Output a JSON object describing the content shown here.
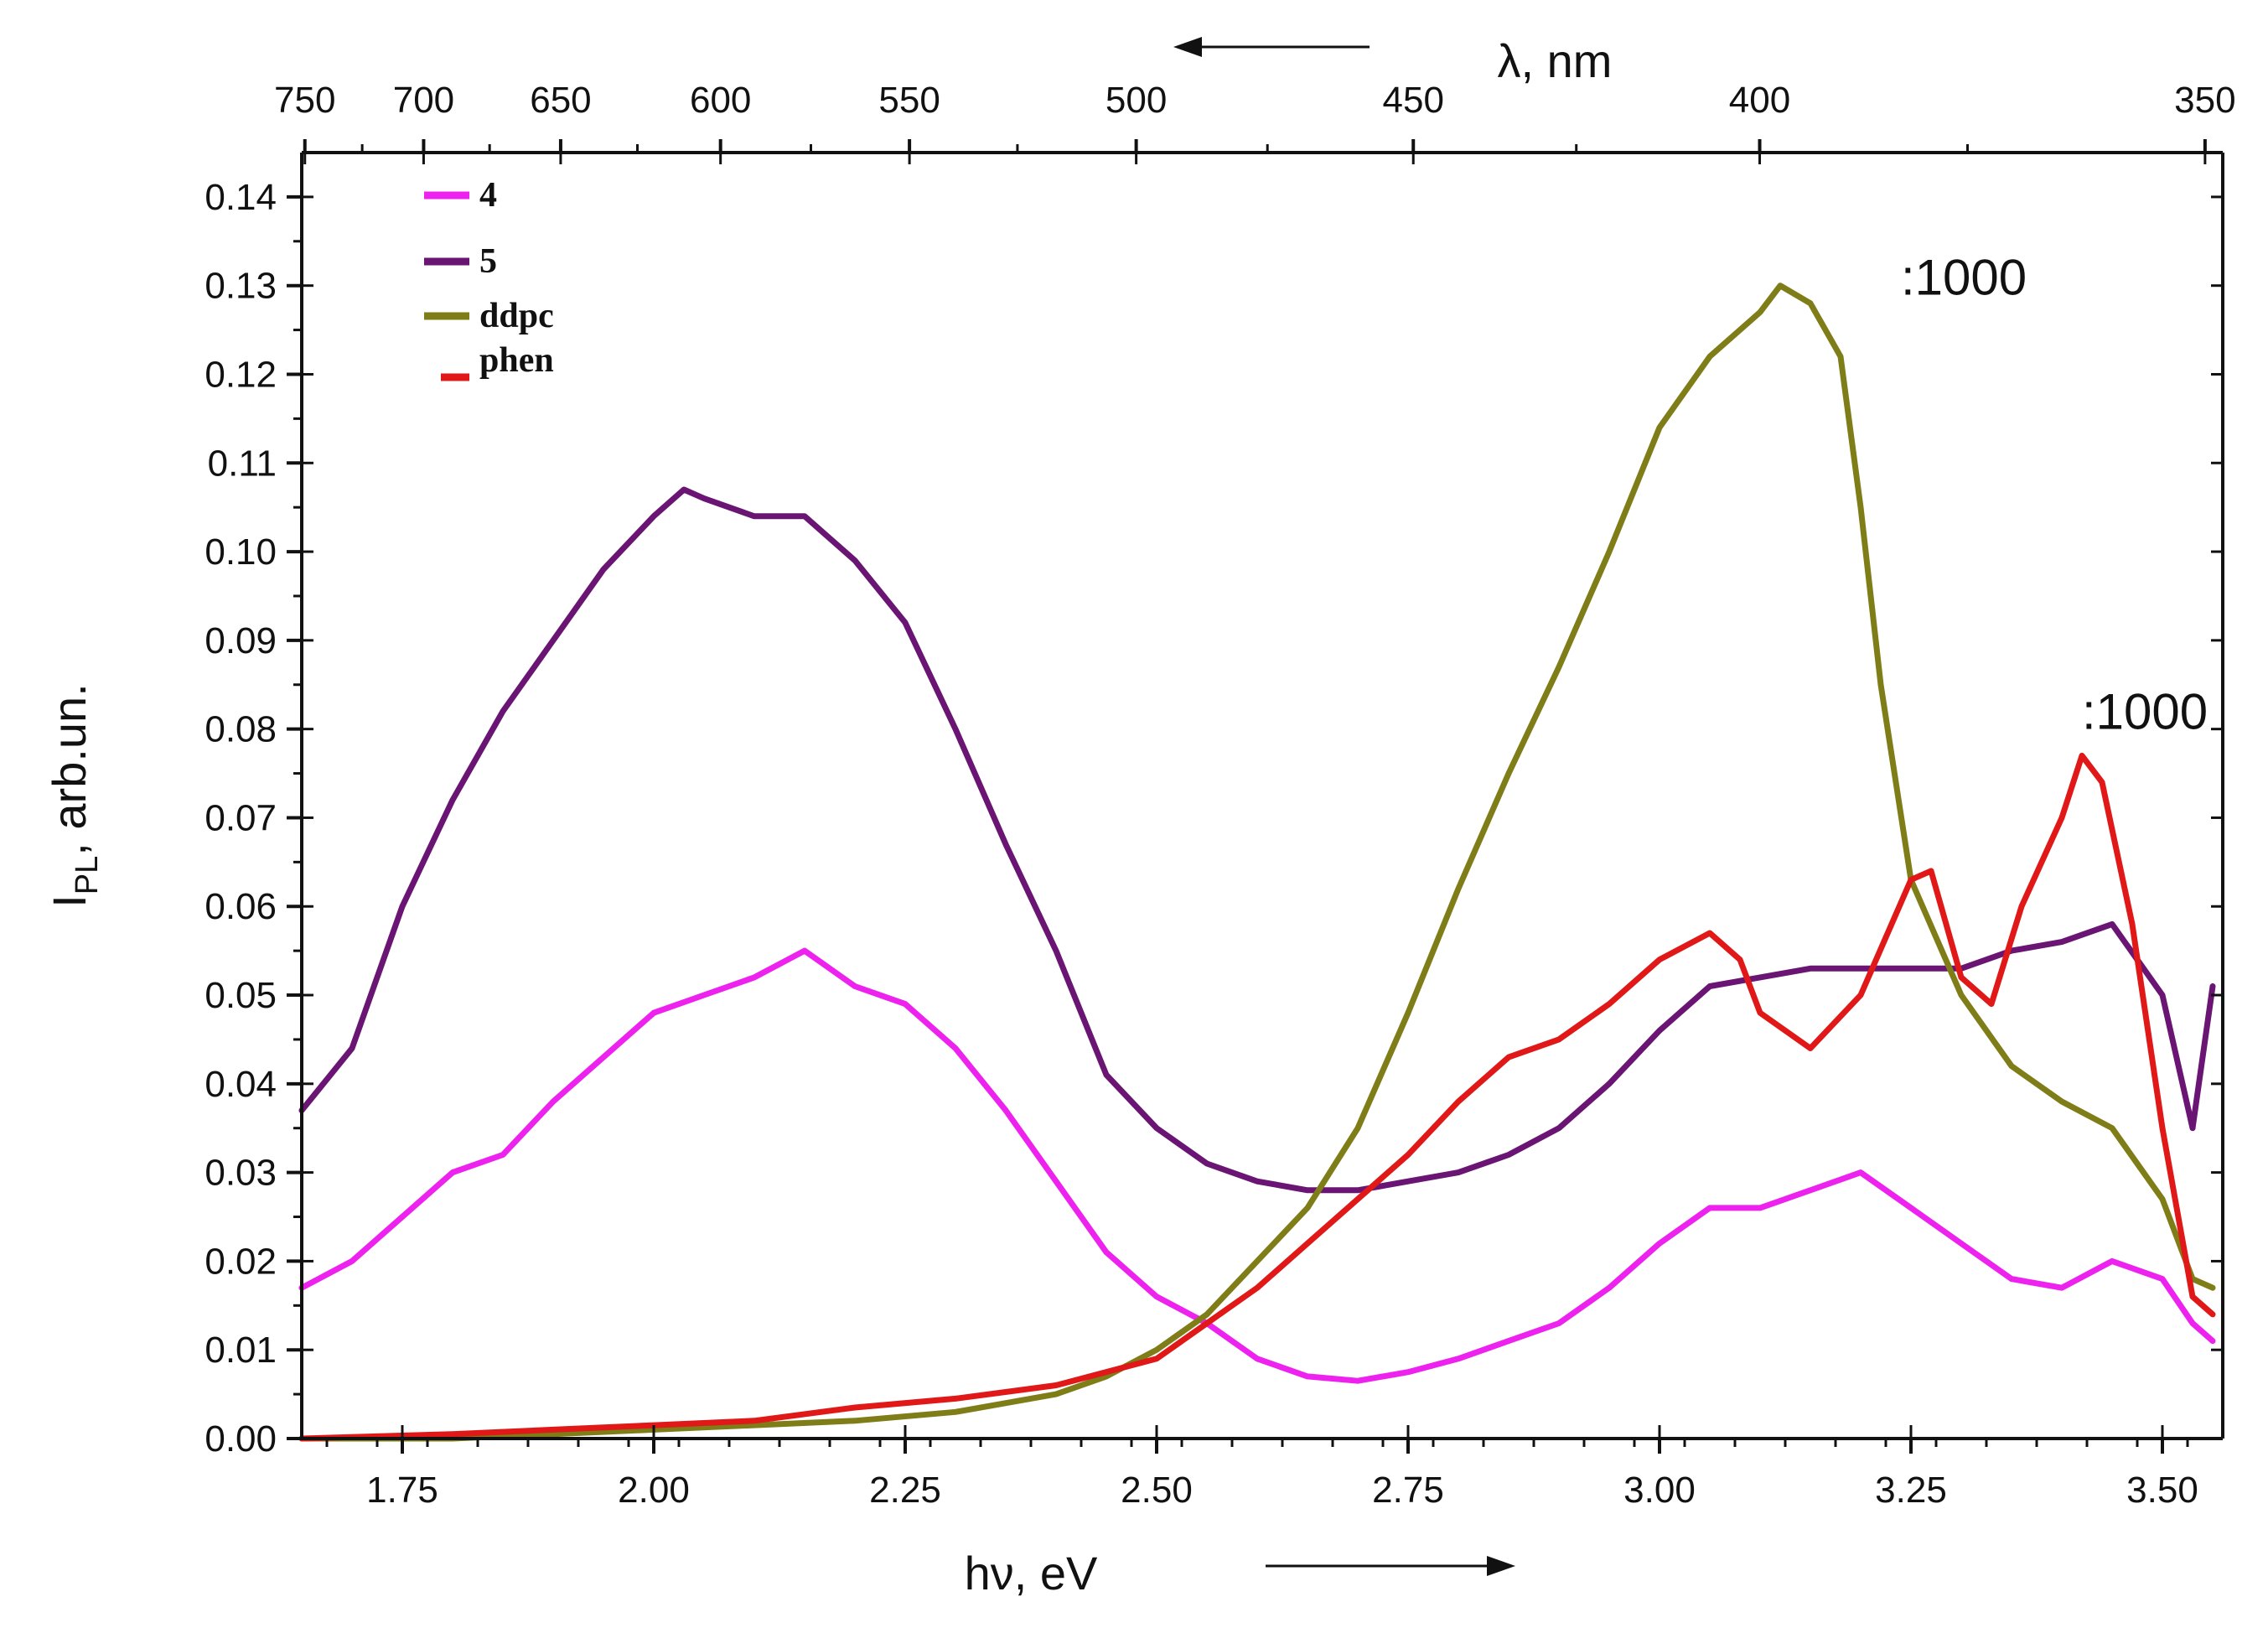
{
  "chart_data": {
    "type": "line",
    "title": "",
    "xlabel": "hν, eV",
    "ylabel": "I",
    "ylabel_sub": "PL",
    "ylabel_suffix": ", arb.un.",
    "xlim": [
      1.65,
      3.56
    ],
    "ylim": [
      0,
      0.145
    ],
    "x_ticks": [
      1.75,
      2.0,
      2.25,
      2.5,
      2.75,
      3.0,
      3.25,
      3.5
    ],
    "x_tick_labels": [
      "1.75",
      "2.00",
      "2.25",
      "2.50",
      "2.75",
      "3.00",
      "3.25",
      "3.50"
    ],
    "y_ticks": [
      0,
      0.01,
      0.02,
      0.03,
      0.04,
      0.05,
      0.06,
      0.07,
      0.08,
      0.09,
      0.1,
      0.11,
      0.12,
      0.13,
      0.14
    ],
    "y_tick_labels": [
      "0.00",
      "0.01",
      "0.02",
      "0.03",
      "0.04",
      "0.05",
      "0.06",
      "0.07",
      "0.08",
      "0.09",
      "0.10",
      "0.11",
      "0.12",
      "0.13",
      "0.14"
    ],
    "top_axis": {
      "label": "λ, nm",
      "ticks_nm": [
        750,
        700,
        650,
        600,
        550,
        500,
        450,
        400,
        350
      ],
      "tick_labels": [
        "750",
        "700",
        "650",
        "600",
        "550",
        "500",
        "450",
        "400",
        "350"
      ]
    },
    "annotations": [
      {
        "text": ":1000",
        "x": 3.24,
        "y": 0.129
      },
      {
        "text": ":1000",
        "x": 3.42,
        "y": 0.08
      }
    ],
    "legend": {
      "position": "top-left",
      "entries": [
        "4",
        "5",
        "ddpc",
        "phen"
      ]
    },
    "series": [
      {
        "name": "4",
        "color": "#ee22ee",
        "x": [
          1.65,
          1.7,
          1.75,
          1.8,
          1.85,
          1.9,
          1.95,
          2.0,
          2.05,
          2.1,
          2.15,
          2.2,
          2.25,
          2.3,
          2.35,
          2.4,
          2.45,
          2.5,
          2.55,
          2.6,
          2.65,
          2.7,
          2.75,
          2.8,
          2.85,
          2.9,
          2.95,
          3.0,
          3.05,
          3.1,
          3.15,
          3.2,
          3.25,
          3.3,
          3.35,
          3.4,
          3.45,
          3.5,
          3.53,
          3.55
        ],
        "values": [
          0.017,
          0.02,
          0.025,
          0.03,
          0.032,
          0.038,
          0.043,
          0.048,
          0.05,
          0.052,
          0.055,
          0.051,
          0.049,
          0.044,
          0.037,
          0.029,
          0.021,
          0.016,
          0.013,
          0.009,
          0.007,
          0.0065,
          0.0075,
          0.009,
          0.011,
          0.013,
          0.017,
          0.022,
          0.026,
          0.026,
          0.028,
          0.03,
          0.026,
          0.022,
          0.018,
          0.017,
          0.02,
          0.018,
          0.013,
          0.011
        ]
      },
      {
        "name": "5",
        "color": "#6a1473",
        "x": [
          1.65,
          1.7,
          1.75,
          1.8,
          1.85,
          1.9,
          1.95,
          2.0,
          2.03,
          2.05,
          2.1,
          2.15,
          2.2,
          2.25,
          2.3,
          2.35,
          2.4,
          2.45,
          2.5,
          2.55,
          2.6,
          2.65,
          2.7,
          2.75,
          2.8,
          2.85,
          2.9,
          2.95,
          3.0,
          3.05,
          3.1,
          3.15,
          3.2,
          3.25,
          3.3,
          3.35,
          3.4,
          3.45,
          3.5,
          3.53,
          3.55
        ],
        "values": [
          0.037,
          0.044,
          0.06,
          0.072,
          0.082,
          0.09,
          0.098,
          0.104,
          0.107,
          0.106,
          0.104,
          0.104,
          0.099,
          0.092,
          0.08,
          0.067,
          0.055,
          0.041,
          0.035,
          0.031,
          0.029,
          0.028,
          0.028,
          0.029,
          0.03,
          0.032,
          0.035,
          0.04,
          0.046,
          0.051,
          0.052,
          0.053,
          0.053,
          0.053,
          0.053,
          0.055,
          0.056,
          0.058,
          0.05,
          0.035,
          0.051
        ]
      },
      {
        "name": "ddpc",
        "color": "#7e7d17",
        "x": [
          1.65,
          1.8,
          1.9,
          2.0,
          2.1,
          2.2,
          2.3,
          2.4,
          2.45,
          2.5,
          2.55,
          2.6,
          2.65,
          2.7,
          2.75,
          2.8,
          2.85,
          2.9,
          2.95,
          3.0,
          3.05,
          3.1,
          3.12,
          3.15,
          3.18,
          3.2,
          3.22,
          3.25,
          3.3,
          3.35,
          3.4,
          3.45,
          3.5,
          3.53,
          3.55
        ],
        "values": [
          0.0,
          0.0,
          0.0005,
          0.001,
          0.0015,
          0.002,
          0.003,
          0.005,
          0.007,
          0.01,
          0.014,
          0.02,
          0.026,
          0.035,
          0.048,
          0.062,
          0.075,
          0.087,
          0.1,
          0.114,
          0.122,
          0.127,
          0.13,
          0.128,
          0.122,
          0.105,
          0.085,
          0.063,
          0.05,
          0.042,
          0.038,
          0.035,
          0.027,
          0.018,
          0.017
        ]
      },
      {
        "name": "phen",
        "color": "#e01818",
        "x": [
          1.65,
          1.8,
          1.9,
          2.0,
          2.1,
          2.2,
          2.3,
          2.4,
          2.5,
          2.55,
          2.6,
          2.65,
          2.7,
          2.75,
          2.8,
          2.85,
          2.9,
          2.95,
          3.0,
          3.05,
          3.08,
          3.1,
          3.15,
          3.2,
          3.25,
          3.27,
          3.3,
          3.33,
          3.36,
          3.4,
          3.42,
          3.44,
          3.47,
          3.5,
          3.53,
          3.55
        ],
        "values": [
          0.0,
          0.0005,
          0.001,
          0.0015,
          0.002,
          0.0035,
          0.0045,
          0.006,
          0.009,
          0.013,
          0.017,
          0.022,
          0.027,
          0.032,
          0.038,
          0.043,
          0.045,
          0.049,
          0.054,
          0.057,
          0.054,
          0.048,
          0.044,
          0.05,
          0.063,
          0.064,
          0.052,
          0.049,
          0.06,
          0.07,
          0.077,
          0.074,
          0.058,
          0.035,
          0.016,
          0.014
        ]
      }
    ]
  }
}
